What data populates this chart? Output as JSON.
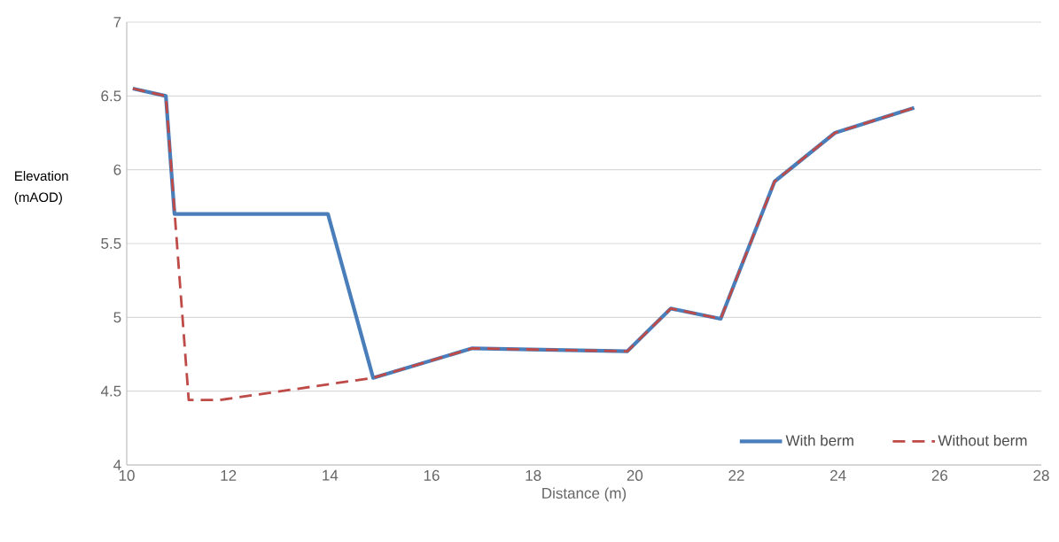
{
  "chart_data": {
    "type": "line",
    "xlabel": "Distance (m)",
    "ylabel": "Elevation (mAOD)",
    "xlim": [
      10,
      28
    ],
    "xticks": [
      10,
      12,
      14,
      16,
      18,
      20,
      22,
      24,
      26,
      28
    ],
    "ylim": [
      4,
      7
    ],
    "yticks": [
      4,
      4.5,
      5,
      5.5,
      6,
      6.5,
      7
    ],
    "grid": "y",
    "legend": "bottom right",
    "series": [
      {
        "name": "With berm",
        "color": "#4a7ebb",
        "line_style": "solid",
        "x": [
          10.12,
          10.77,
          10.94,
          13.96,
          14.85,
          16.8,
          19.85,
          20.71,
          21.69,
          22.75,
          23.94,
          25.5
        ],
        "values": [
          6.55,
          6.5,
          5.7,
          5.7,
          4.59,
          4.79,
          4.77,
          5.06,
          4.99,
          5.92,
          6.25,
          6.42
        ]
      },
      {
        "name": "Without berm",
        "color": "#be4b48",
        "line_style": "dashed",
        "x": [
          10.12,
          10.77,
          11.22,
          11.83,
          14.85,
          16.8,
          19.85,
          20.71,
          21.69,
          22.75,
          23.94,
          25.5
        ],
        "values": [
          6.55,
          6.5,
          4.44,
          4.44,
          4.59,
          4.79,
          4.77,
          5.06,
          4.99,
          5.92,
          6.25,
          6.42
        ]
      }
    ]
  }
}
